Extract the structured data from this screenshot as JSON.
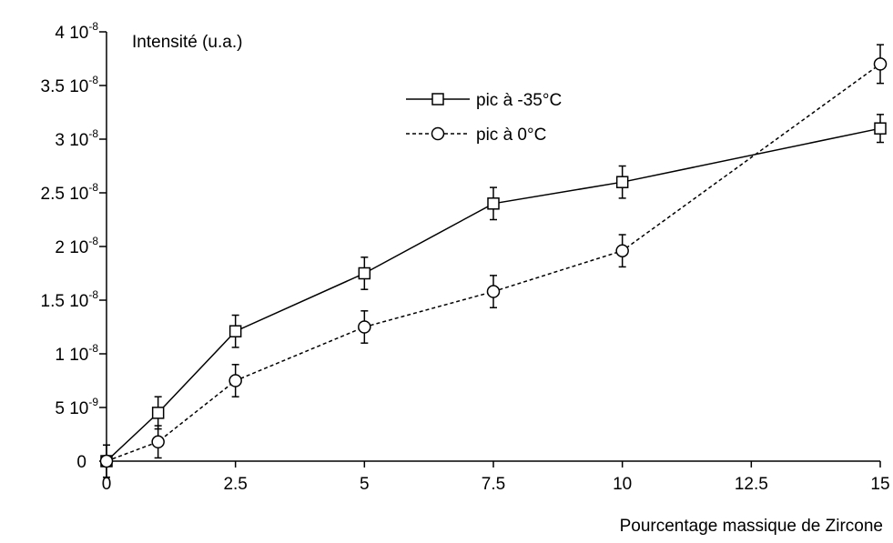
{
  "chart_data": {
    "type": "line",
    "title": "",
    "xlabel": "Pourcentage massique de Zircone",
    "ylabel": "Intensité (u.a.)",
    "xlim": [
      0,
      15
    ],
    "ylim": [
      0,
      4e-08
    ],
    "grid": false,
    "legend_position": "top-center",
    "x_ticks": [
      {
        "value": 0,
        "label": "0"
      },
      {
        "value": 2.5,
        "label": "2.5"
      },
      {
        "value": 5,
        "label": "5"
      },
      {
        "value": 7.5,
        "label": "7.5"
      },
      {
        "value": 10,
        "label": "10"
      },
      {
        "value": 12.5,
        "label": "12.5"
      },
      {
        "value": 15,
        "label": "15"
      }
    ],
    "y_ticks": [
      {
        "value": 0,
        "mantissa": "0",
        "exp": ""
      },
      {
        "value": 5e-09,
        "mantissa": "5 10",
        "exp": "-9"
      },
      {
        "value": 1e-08,
        "mantissa": "1 10",
        "exp": "-8"
      },
      {
        "value": 1.5e-08,
        "mantissa": "1.5 10",
        "exp": "-8"
      },
      {
        "value": 2e-08,
        "mantissa": "2 10",
        "exp": "-8"
      },
      {
        "value": 2.5e-08,
        "mantissa": "2.5 10",
        "exp": "-8"
      },
      {
        "value": 3e-08,
        "mantissa": "3 10",
        "exp": "-8"
      },
      {
        "value": 3.5e-08,
        "mantissa": "3.5 10",
        "exp": "-8"
      },
      {
        "value": 4e-08,
        "mantissa": "4 10",
        "exp": "-8"
      }
    ],
    "series": [
      {
        "name": "pic à -35°C",
        "marker": "square",
        "line": "solid",
        "x": [
          0,
          1,
          2.5,
          5,
          7.5,
          10,
          15
        ],
        "y": [
          0,
          4.5e-09,
          1.21e-08,
          1.75e-08,
          2.4e-08,
          2.6e-08,
          3.1e-08
        ],
        "err": [
          1.5e-09,
          1.5e-09,
          1.5e-09,
          1.5e-09,
          1.5e-09,
          1.5e-09,
          1.3e-09
        ]
      },
      {
        "name": "pic à 0°C",
        "marker": "circle",
        "line": "dashed",
        "x": [
          0,
          1,
          2.5,
          5,
          7.5,
          10,
          15
        ],
        "y": [
          0,
          1.8e-09,
          7.5e-09,
          1.25e-08,
          1.58e-08,
          1.96e-08,
          3.7e-08
        ],
        "err": [
          1.5e-09,
          1.5e-09,
          1.5e-09,
          1.5e-09,
          1.5e-09,
          1.5e-09,
          1.8e-09
        ]
      }
    ],
    "colors": {
      "line": "#000000",
      "background": "#ffffff"
    }
  }
}
